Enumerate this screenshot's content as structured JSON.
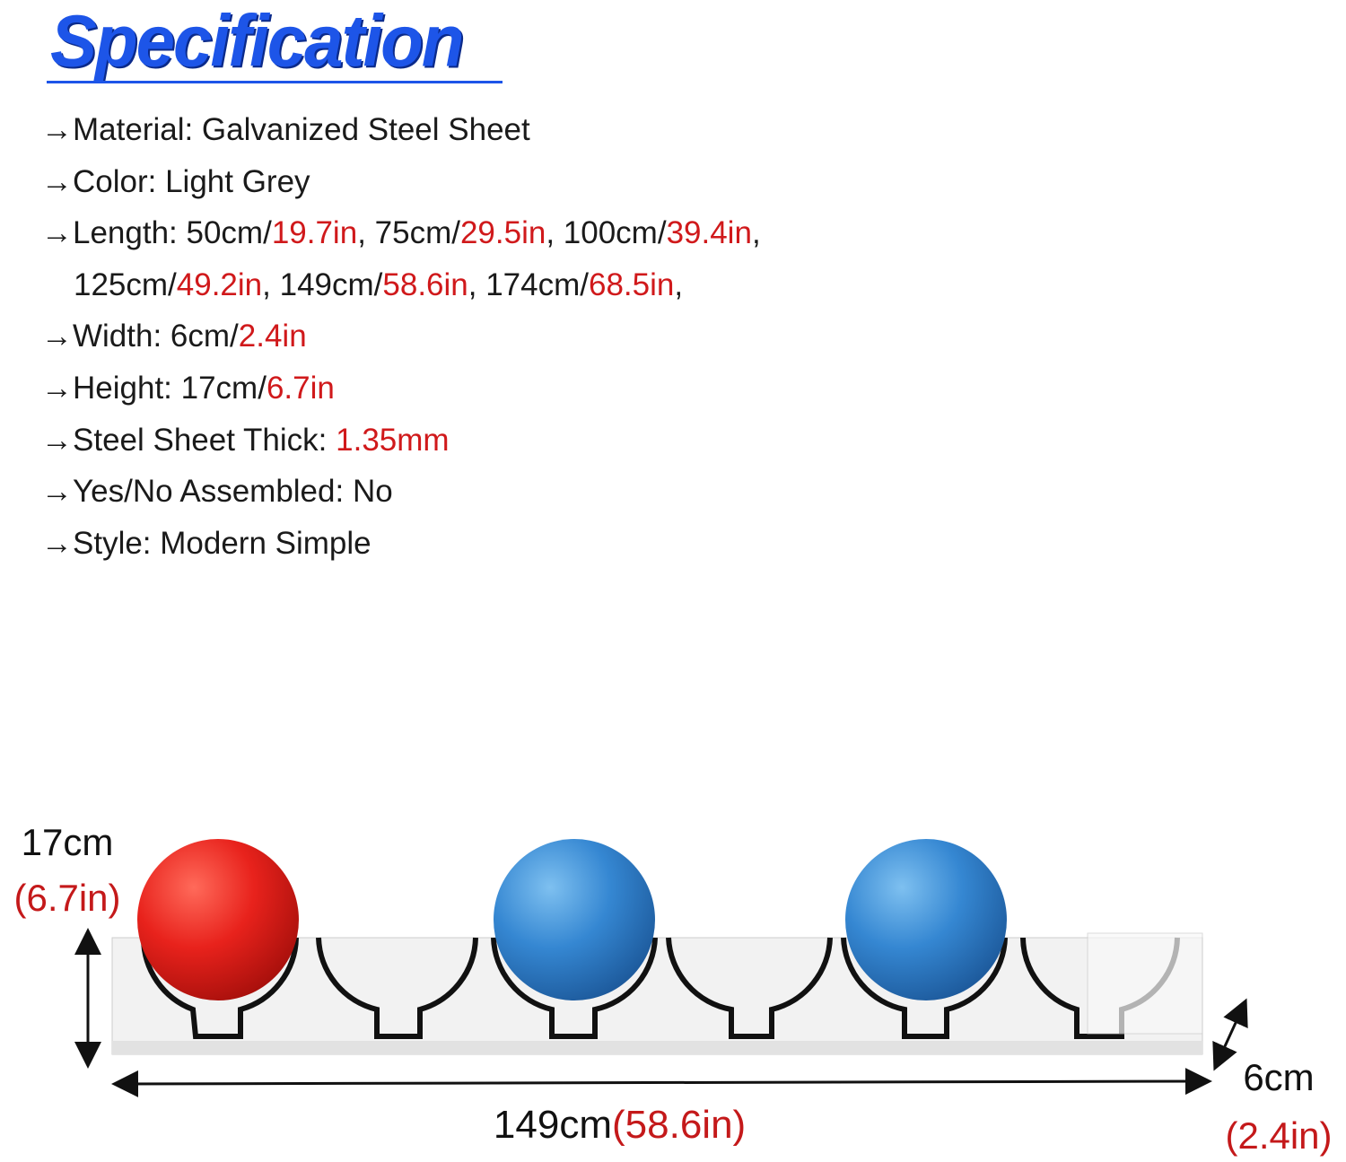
{
  "header": {
    "title": "Specification"
  },
  "spec_lines": [
    [
      {
        "text": "→Material: Galvanized Steel Sheet"
      }
    ],
    [
      {
        "text": "→Color: Light Grey"
      }
    ],
    [
      {
        "text": "→Length: 50cm/"
      },
      {
        "text": "19.7in",
        "highlight": true
      },
      {
        "text": ", 75cm/"
      },
      {
        "text": "29.5in",
        "highlight": true
      },
      {
        "text": ", 100cm/"
      },
      {
        "text": "39.4in",
        "highlight": true
      },
      {
        "text": ","
      }
    ],
    [
      {
        "text": "125cm/"
      },
      {
        "text": "49.2in",
        "highlight": true
      },
      {
        "text": ", 149cm/"
      },
      {
        "text": "58.6in",
        "highlight": true
      },
      {
        "text": ", 174cm/"
      },
      {
        "text": "68.5in",
        "highlight": true
      },
      {
        "text": ","
      }
    ],
    [
      {
        "text": "→Width: 6cm/"
      },
      {
        "text": "2.4in",
        "highlight": true
      }
    ],
    [
      {
        "text": "→Height: 17cm/"
      },
      {
        "text": "6.7in",
        "highlight": true
      }
    ],
    [
      {
        "text": "→Steel Sheet Thick: "
      },
      {
        "text": "1.35mm",
        "highlight": true
      }
    ],
    [
      {
        "text": "→Yes/No Assembled: No"
      }
    ],
    [
      {
        "text": "→Style: Modern Simple"
      }
    ]
  ],
  "diagram": {
    "height": {
      "metric": "17cm",
      "imperial": "(6.7in)"
    },
    "length": {
      "metric": "149cm",
      "imperial": "(58.6in)"
    },
    "width": {
      "metric": "6cm",
      "imperial": "(2.4in)"
    }
  }
}
